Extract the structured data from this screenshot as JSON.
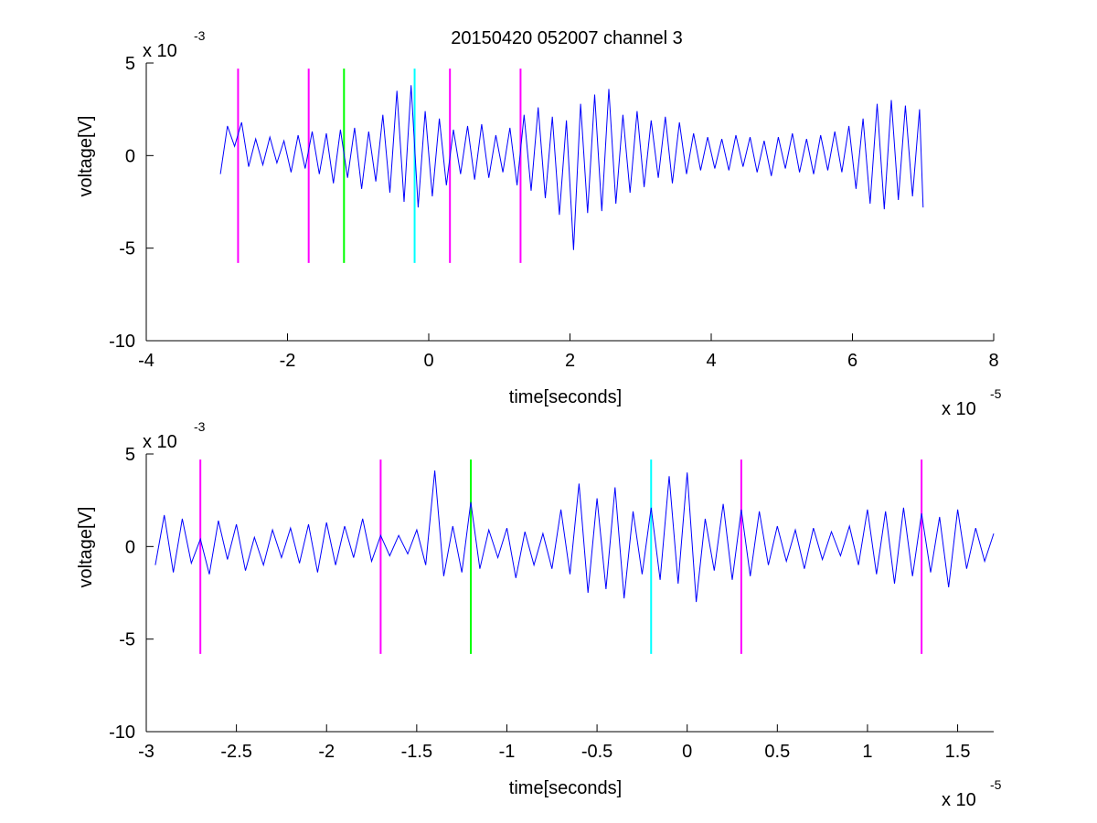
{
  "figure": {
    "title": "20150420 052007 channel 3"
  },
  "chart_data": [
    {
      "type": "line",
      "title": "20150420 052007 channel 3",
      "xlabel": "time[seconds]",
      "ylabel": "voltage[V]",
      "x_multiplier": "x 10",
      "x_exponent": "-5",
      "y_multiplier": "x 10",
      "y_exponent": "-3",
      "xlim": [
        -4,
        8
      ],
      "ylim": [
        -10,
        5
      ],
      "xticks": [
        -4,
        -2,
        0,
        2,
        4,
        6,
        8
      ],
      "xtick_labels": [
        "-4",
        "-2",
        "0",
        "2",
        "4",
        "6",
        "8"
      ],
      "yticks": [
        5,
        0,
        -5,
        -10
      ],
      "ytick_labels": [
        "5",
        "0",
        "-5",
        "-10"
      ],
      "grid": false,
      "series": [
        {
          "color": "#0000ff",
          "x": [
            -2.95,
            -2.85,
            -2.75,
            -2.65,
            -2.55,
            -2.45,
            -2.35,
            -2.25,
            -2.15,
            -2.05,
            -1.95,
            -1.85,
            -1.75,
            -1.65,
            -1.55,
            -1.45,
            -1.35,
            -1.25,
            -1.15,
            -1.05,
            -0.95,
            -0.85,
            -0.75,
            -0.65,
            -0.55,
            -0.45,
            -0.35,
            -0.25,
            -0.15,
            -0.05,
            0.05,
            0.15,
            0.25,
            0.35,
            0.45,
            0.55,
            0.65,
            0.75,
            0.85,
            0.95,
            1.05,
            1.15,
            1.25,
            1.35,
            1.45,
            1.55,
            1.65,
            1.75,
            1.85,
            1.95,
            2.05,
            2.15,
            2.25,
            2.35,
            2.45,
            2.55,
            2.65,
            2.75,
            2.85,
            2.95,
            3.05,
            3.15,
            3.25,
            3.35,
            3.45,
            3.55,
            3.65,
            3.75,
            3.85,
            3.95,
            4.05,
            4.15,
            4.25,
            4.35,
            4.45,
            4.55,
            4.65,
            4.75,
            4.85,
            4.95,
            5.05,
            5.15,
            5.25,
            5.35,
            5.45,
            5.55,
            5.65,
            5.75,
            5.85,
            5.95,
            6.05,
            6.15,
            6.25,
            6.35,
            6.45,
            6.55,
            6.65,
            6.75,
            6.85,
            6.95,
            7.0
          ],
          "y": [
            -1.0,
            1.6,
            0.5,
            1.8,
            -0.6,
            0.9,
            -0.5,
            1.0,
            -0.4,
            0.8,
            -0.9,
            1.1,
            -0.7,
            1.3,
            -1.0,
            1.2,
            -1.5,
            1.4,
            -1.2,
            1.5,
            -1.8,
            1.3,
            -1.4,
            2.2,
            -2.0,
            3.5,
            -2.5,
            3.8,
            -2.8,
            2.4,
            -2.2,
            2.0,
            -1.6,
            1.4,
            -1.0,
            1.6,
            -1.3,
            1.7,
            -1.2,
            1.1,
            -0.9,
            1.5,
            -1.6,
            2.2,
            -1.9,
            2.6,
            -2.3,
            2.1,
            -3.2,
            1.9,
            -5.1,
            2.8,
            -3.1,
            3.3,
            -3.0,
            3.6,
            -2.6,
            2.2,
            -2.0,
            2.4,
            -1.7,
            1.9,
            -1.2,
            2.1,
            -1.5,
            1.8,
            -1.0,
            1.2,
            -0.8,
            1.0,
            -0.7,
            0.9,
            -0.8,
            1.1,
            -0.6,
            1.0,
            -0.9,
            0.8,
            -1.1,
            1.0,
            -0.7,
            1.2,
            -0.9,
            0.9,
            -1.0,
            1.1,
            -0.8,
            1.3,
            -0.9,
            1.6,
            -1.8,
            2.0,
            -2.6,
            2.8,
            -2.9,
            3.0,
            -2.4,
            2.7,
            -2.2,
            2.5,
            -2.8
          ]
        }
      ],
      "markers": [
        {
          "x": -2.7,
          "color": "#ff00ff"
        },
        {
          "x": -1.7,
          "color": "#ff00ff"
        },
        {
          "x": -1.2,
          "color": "#00ff00"
        },
        {
          "x": -0.2,
          "color": "#00ffff"
        },
        {
          "x": 0.3,
          "color": "#ff00ff"
        },
        {
          "x": 1.3,
          "color": "#ff00ff"
        }
      ],
      "marker_ylim": [
        -5.8,
        4.7
      ]
    },
    {
      "type": "line",
      "xlabel": "time[seconds]",
      "ylabel": "voltage[V]",
      "x_multiplier": "x 10",
      "x_exponent": "-5",
      "y_multiplier": "x 10",
      "y_exponent": "-3",
      "xlim": [
        -3,
        1.7
      ],
      "ylim": [
        -10,
        5
      ],
      "xticks": [
        -3,
        -2.5,
        -2,
        -1.5,
        -1,
        -0.5,
        0,
        0.5,
        1,
        1.5
      ],
      "xtick_labels": [
        "-3",
        "-2.5",
        "-2",
        "-1.5",
        "-1",
        "-0.5",
        "0",
        "0.5",
        "1",
        "1.5"
      ],
      "yticks": [
        5,
        0,
        -5,
        -10
      ],
      "ytick_labels": [
        "5",
        "0",
        "-5",
        "-10"
      ],
      "grid": false,
      "series": [
        {
          "color": "#0000ff",
          "x": [
            -2.95,
            -2.9,
            -2.85,
            -2.8,
            -2.75,
            -2.7,
            -2.65,
            -2.6,
            -2.55,
            -2.5,
            -2.45,
            -2.4,
            -2.35,
            -2.3,
            -2.25,
            -2.2,
            -2.15,
            -2.1,
            -2.05,
            -2.0,
            -1.95,
            -1.9,
            -1.85,
            -1.8,
            -1.75,
            -1.7,
            -1.65,
            -1.6,
            -1.55,
            -1.5,
            -1.45,
            -1.4,
            -1.35,
            -1.3,
            -1.25,
            -1.2,
            -1.15,
            -1.1,
            -1.05,
            -1.0,
            -0.95,
            -0.9,
            -0.85,
            -0.8,
            -0.75,
            -0.7,
            -0.65,
            -0.6,
            -0.55,
            -0.5,
            -0.45,
            -0.4,
            -0.35,
            -0.3,
            -0.25,
            -0.2,
            -0.15,
            -0.1,
            -0.05,
            0.0,
            0.05,
            0.1,
            0.15,
            0.2,
            0.25,
            0.3,
            0.35,
            0.4,
            0.45,
            0.5,
            0.55,
            0.6,
            0.65,
            0.7,
            0.75,
            0.8,
            0.85,
            0.9,
            0.95,
            1.0,
            1.05,
            1.1,
            1.15,
            1.2,
            1.25,
            1.3,
            1.35,
            1.4,
            1.45,
            1.5,
            1.55,
            1.6,
            1.65,
            1.7
          ],
          "y": [
            -1.0,
            1.7,
            -1.4,
            1.5,
            -0.9,
            0.4,
            -1.5,
            1.4,
            -0.7,
            1.2,
            -1.3,
            0.5,
            -1.0,
            0.9,
            -0.6,
            1.0,
            -0.9,
            1.2,
            -1.4,
            1.3,
            -1.0,
            1.1,
            -0.6,
            1.5,
            -0.8,
            0.6,
            -0.5,
            0.6,
            -0.4,
            0.9,
            -1.0,
            4.1,
            -1.6,
            1.1,
            -1.4,
            2.4,
            -1.2,
            0.9,
            -0.6,
            1.0,
            -1.7,
            0.8,
            -1.0,
            0.7,
            -1.2,
            2.0,
            -1.5,
            3.4,
            -2.5,
            2.6,
            -2.3,
            3.2,
            -2.8,
            1.9,
            -1.5,
            2.1,
            -1.8,
            3.8,
            -2.0,
            4.0,
            -3.0,
            1.5,
            -1.3,
            2.3,
            -1.8,
            2.0,
            -1.6,
            1.9,
            -1.0,
            1.1,
            -0.8,
            0.9,
            -1.2,
            1.0,
            -0.7,
            0.8,
            -0.5,
            1.1,
            -1.0,
            2.0,
            -1.5,
            1.9,
            -2.0,
            2.1,
            -1.6,
            1.8,
            -1.4,
            1.6,
            -2.2,
            2.0,
            -1.2,
            1.0,
            -0.8,
            0.7
          ]
        }
      ],
      "markers": [
        {
          "x": -2.7,
          "color": "#ff00ff"
        },
        {
          "x": -1.7,
          "color": "#ff00ff"
        },
        {
          "x": -1.2,
          "color": "#00ff00"
        },
        {
          "x": -0.2,
          "color": "#00ffff"
        },
        {
          "x": 0.3,
          "color": "#ff00ff"
        },
        {
          "x": 1.3,
          "color": "#ff00ff"
        }
      ],
      "marker_ylim": [
        -5.8,
        4.7
      ]
    }
  ]
}
